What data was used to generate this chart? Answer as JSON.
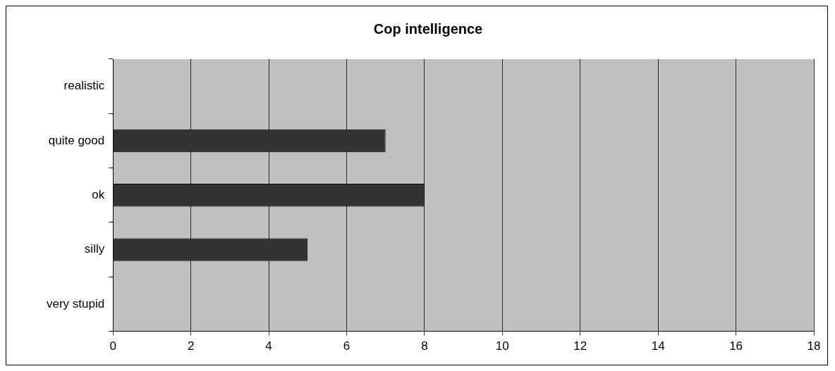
{
  "chart_data": {
    "type": "bar",
    "orientation": "horizontal",
    "title": "Cop intelligence",
    "categories": [
      "realistic",
      "quite good",
      "ok",
      "silly",
      "very stupid"
    ],
    "values": [
      0,
      7,
      8,
      5,
      0
    ],
    "color": "#333333",
    "xlim": [
      0,
      18
    ],
    "xticks": [
      0,
      2,
      4,
      6,
      8,
      10,
      12,
      14,
      16,
      18
    ],
    "grid": "x",
    "legend": false
  }
}
